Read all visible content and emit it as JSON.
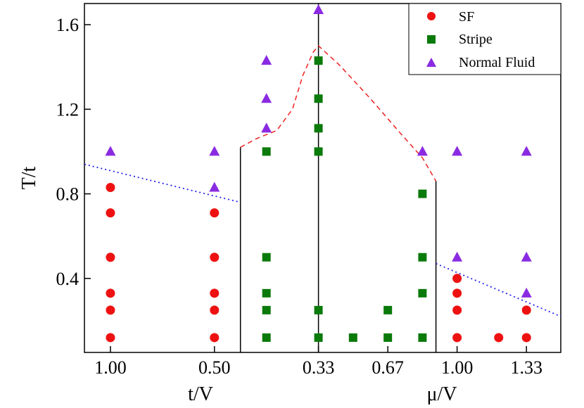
{
  "chart_data": {
    "type": "scatter",
    "title": "",
    "ylabel": "T/t",
    "xlabel_left": "t/V",
    "xlabel_right": "μ/V",
    "ylim": [
      0.05,
      1.7
    ],
    "yticks": [
      0.4,
      0.8,
      1.2,
      1.6
    ],
    "ytick_labels": [
      "0.4",
      "0.8",
      "1.2",
      "1.6"
    ],
    "xticks": [
      {
        "x": 0.0,
        "label": "1.00"
      },
      {
        "x": 1.0,
        "label": "0.50"
      },
      {
        "x": 2.0,
        "label": "0.33"
      },
      {
        "x": 2.667,
        "label": "0.67"
      },
      {
        "x": 3.333,
        "label": "1.00"
      },
      {
        "x": 4.0,
        "label": "1.33"
      }
    ],
    "xlim": [
      -0.25,
      4.33
    ],
    "legend_position": "top-right",
    "series": [
      {
        "name": "SF",
        "marker": "circle",
        "color": "#ee1111",
        "points": [
          [
            0,
            0.12
          ],
          [
            0,
            0.25
          ],
          [
            0,
            0.33
          ],
          [
            0,
            0.5
          ],
          [
            0,
            0.71
          ],
          [
            0,
            0.83
          ],
          [
            1,
            0.12
          ],
          [
            1,
            0.25
          ],
          [
            1,
            0.33
          ],
          [
            1,
            0.5
          ],
          [
            1,
            0.71
          ],
          [
            3.333,
            0.12
          ],
          [
            3.333,
            0.25
          ],
          [
            3.333,
            0.33
          ],
          [
            3.333,
            0.4
          ],
          [
            3.733,
            0.12
          ],
          [
            4.0,
            0.12
          ],
          [
            4.0,
            0.25
          ]
        ]
      },
      {
        "name": "Stripe",
        "marker": "square",
        "color": "#0a7a0a",
        "points": [
          [
            1.5,
            0.12
          ],
          [
            1.5,
            0.25
          ],
          [
            1.5,
            0.33
          ],
          [
            1.5,
            0.5
          ],
          [
            1.5,
            1.0
          ],
          [
            2.0,
            0.12
          ],
          [
            2.0,
            0.25
          ],
          [
            2.0,
            1.0
          ],
          [
            2.0,
            1.11
          ],
          [
            2.0,
            1.25
          ],
          [
            2.0,
            1.43
          ],
          [
            2.333,
            0.12
          ],
          [
            2.667,
            0.12
          ],
          [
            2.667,
            0.25
          ],
          [
            3.0,
            0.12
          ],
          [
            3.0,
            0.33
          ],
          [
            3.0,
            0.5
          ],
          [
            3.0,
            0.8
          ]
        ]
      },
      {
        "name": "Normal Fluid",
        "marker": "triangle",
        "color": "#8a2be2",
        "points": [
          [
            0,
            1.0
          ],
          [
            1,
            1.0
          ],
          [
            1,
            0.83
          ],
          [
            1.5,
            1.11
          ],
          [
            1.5,
            1.25
          ],
          [
            1.5,
            1.43
          ],
          [
            2.0,
            1.67
          ],
          [
            3.0,
            1.0
          ],
          [
            3.333,
            1.0
          ],
          [
            3.333,
            0.5
          ],
          [
            4.0,
            1.0
          ],
          [
            4.0,
            0.5
          ],
          [
            4.0,
            0.33
          ]
        ]
      }
    ],
    "lines": [
      {
        "name": "boundary-left-solid",
        "style": "solid",
        "color": "#000000",
        "points": [
          [
            1.25,
            0.05
          ],
          [
            1.25,
            1.02
          ]
        ]
      },
      {
        "name": "boundary-center-solid",
        "style": "solid",
        "color": "#000000",
        "points": [
          [
            2.0,
            0.05
          ],
          [
            2.0,
            1.7
          ]
        ]
      },
      {
        "name": "boundary-right-solid",
        "style": "solid",
        "color": "#000000",
        "points": [
          [
            3.13,
            0.05
          ],
          [
            3.13,
            0.86
          ]
        ]
      },
      {
        "name": "stripe-nf-dashed",
        "style": "dashed",
        "color": "#ee2222",
        "points": [
          [
            1.25,
            1.02
          ],
          [
            1.4,
            1.06
          ],
          [
            1.6,
            1.1
          ],
          [
            1.75,
            1.2
          ],
          [
            1.85,
            1.36
          ],
          [
            1.95,
            1.47
          ],
          [
            2.0,
            1.5
          ],
          [
            2.2,
            1.41
          ],
          [
            2.5,
            1.25
          ],
          [
            2.8,
            1.08
          ],
          [
            3.0,
            0.97
          ],
          [
            3.13,
            0.86
          ]
        ]
      },
      {
        "name": "sf-nf-dotted-left",
        "style": "dotted",
        "color": "#2222ee",
        "points": [
          [
            -0.25,
            0.94
          ],
          [
            1.25,
            0.76
          ]
        ]
      },
      {
        "name": "sf-nf-dotted-right",
        "style": "dotted",
        "color": "#2222ee",
        "points": [
          [
            3.13,
            0.47
          ],
          [
            4.33,
            0.22
          ]
        ]
      }
    ]
  }
}
